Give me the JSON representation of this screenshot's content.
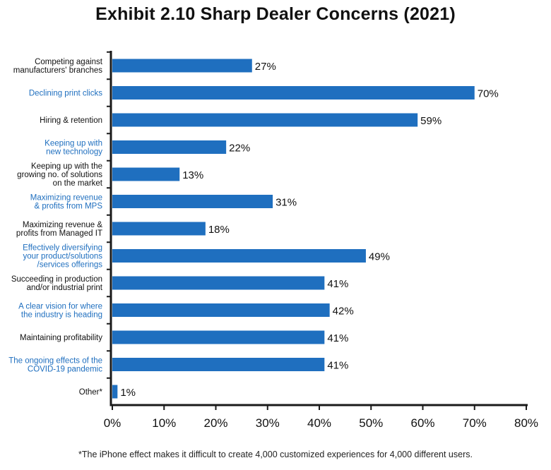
{
  "chart_data": {
    "type": "bar",
    "orientation": "horizontal",
    "title": "Exhibit 2.10 Sharp Dealer Concerns (2021)",
    "footnote": "*The iPhone effect makes it difficult to create 4,000 customized experiences for 4,000 different users.",
    "categories": [
      [
        "Competing against",
        "manufacturers' branches"
      ],
      [
        "Declining print clicks"
      ],
      [
        "Hiring & retention"
      ],
      [
        "Keeping up with",
        "new technology"
      ],
      [
        "Keeping up with the",
        "growing no. of solutions",
        "on the market"
      ],
      [
        "Maximizing revenue",
        "& profits from MPS"
      ],
      [
        "Maximizing revenue &",
        "profits from Managed IT"
      ],
      [
        "Effectively diversifying",
        "your product/solutions",
        "/services offerings"
      ],
      [
        "Succeeding in production",
        "and/or industrial print"
      ],
      [
        "A clear vision for where",
        "the industry is heading"
      ],
      [
        "Maintaining profitability"
      ],
      [
        "The ongoing effects of the",
        "COVID-19 pandemic"
      ],
      [
        "Other*"
      ]
    ],
    "values": [
      27,
      70,
      59,
      22,
      13,
      31,
      18,
      49,
      41,
      42,
      41,
      41,
      1
    ],
    "value_labels": [
      "27%",
      "70%",
      "59%",
      "22%",
      "13%",
      "31%",
      "18%",
      "49%",
      "41%",
      "42%",
      "41%",
      "41%",
      "1%"
    ],
    "label_colors": [
      "#111111",
      "#1f6fbf",
      "#111111",
      "#1f6fbf",
      "#111111",
      "#1f6fbf",
      "#111111",
      "#1f6fbf",
      "#111111",
      "#1f6fbf",
      "#111111",
      "#1f6fbf",
      "#111111"
    ],
    "xlim": [
      0,
      80
    ],
    "xticks": [
      0,
      10,
      20,
      30,
      40,
      50,
      60,
      70,
      80
    ],
    "xtick_labels": [
      "0%",
      "10%",
      "20%",
      "30%",
      "40%",
      "50%",
      "60%",
      "70%",
      "80%"
    ],
    "bar_color": "#1f6fbf",
    "axis_color": "#1a1a1a",
    "grid": false,
    "legend": "none"
  }
}
